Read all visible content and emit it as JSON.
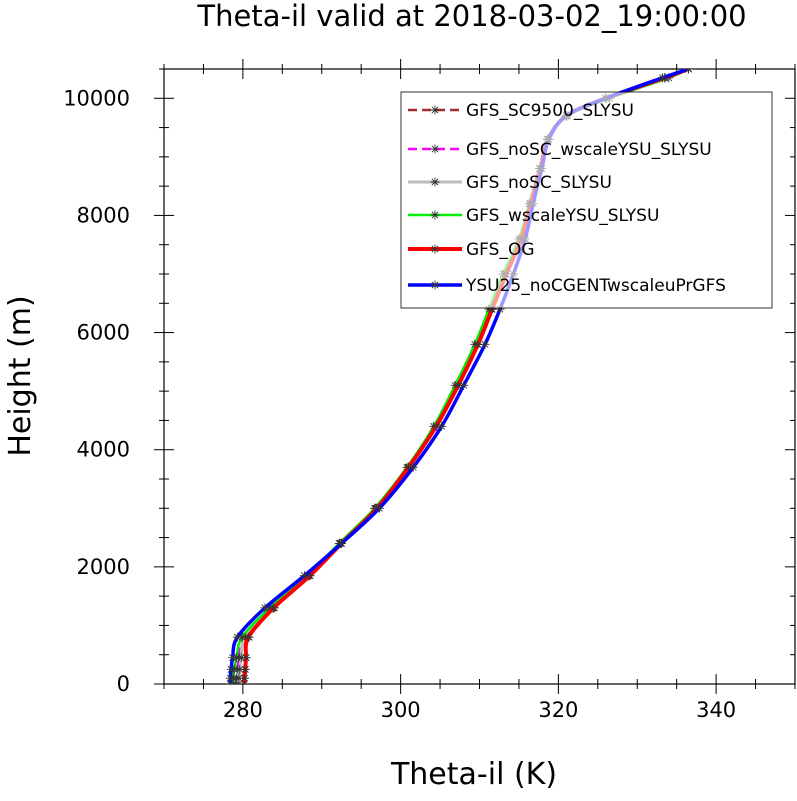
{
  "chart_data": {
    "type": "line",
    "title": "Theta-il valid at 2018-03-02_19:00:00",
    "xlabel": "Theta-il (K)",
    "ylabel": "Height (m)",
    "xlim": [
      270,
      350
    ],
    "ylim": [
      0,
      10500
    ],
    "x_ticks": [
      "280",
      "300",
      "320",
      "340"
    ],
    "y_ticks": [
      "0",
      "2000",
      "4000",
      "6000",
      "8000",
      "10000"
    ],
    "grid": false,
    "legend_position": "top-right",
    "series": [
      {
        "name": "GFS_SC9500_SLYSU",
        "color": "#a52a2a",
        "dashed": true,
        "x": [
          280.2,
          280.2,
          280.3,
          280.4,
          280.8,
          284.0,
          288.5,
          292.5,
          297.0,
          301.0,
          304.5,
          307.3,
          309.8,
          311.5,
          313.2,
          315.2,
          316.4,
          317.6,
          318.6,
          321.0,
          326.0,
          333.5,
          336.5
        ],
        "y": [
          0,
          100,
          250,
          450,
          800,
          1300,
          1850,
          2400,
          3000,
          3700,
          4400,
          5100,
          5800,
          6400,
          7000,
          7600,
          8200,
          8800,
          9300,
          9700,
          10000,
          10350,
          10500
        ]
      },
      {
        "name": "GFS_noSC_wscaleYSU_SLYSU",
        "color": "#ff00ff",
        "dashed": true,
        "x": [
          279.2,
          279.2,
          279.3,
          279.5,
          280.0,
          283.5,
          288.3,
          292.3,
          296.8,
          301.0,
          304.5,
          307.2,
          309.7,
          311.5,
          313.3,
          315.3,
          316.5,
          317.7,
          318.7,
          321.0,
          326.0,
          333.5,
          336.5
        ],
        "y": [
          0,
          100,
          250,
          450,
          800,
          1300,
          1850,
          2400,
          3000,
          3700,
          4400,
          5100,
          5800,
          6400,
          7000,
          7600,
          8200,
          8800,
          9300,
          9700,
          10000,
          10350,
          10500
        ]
      },
      {
        "name": "GFS_noSC_SLYSU",
        "color": "#bdbdbd",
        "dashed": false,
        "x": [
          279.5,
          279.5,
          279.6,
          279.8,
          280.3,
          283.8,
          288.4,
          292.4,
          296.9,
          301.0,
          304.5,
          307.2,
          309.7,
          311.5,
          313.3,
          315.3,
          316.5,
          317.7,
          318.7,
          321.0,
          326.0,
          333.5,
          336.5
        ],
        "y": [
          0,
          100,
          250,
          450,
          800,
          1300,
          1850,
          2400,
          3000,
          3700,
          4400,
          5100,
          5800,
          6400,
          7000,
          7600,
          8200,
          8800,
          9300,
          9700,
          10000,
          10350,
          10500
        ]
      },
      {
        "name": "GFS_wscaleYSU_SLYSU",
        "color": "#00ee00",
        "dashed": false,
        "x": [
          278.8,
          278.8,
          278.9,
          279.2,
          279.9,
          283.4,
          288.2,
          292.2,
          296.7,
          300.8,
          304.2,
          306.9,
          309.4,
          311.2,
          313.0,
          315.0,
          316.3,
          317.6,
          318.7,
          321.2,
          326.5,
          334.0,
          336.5
        ],
        "y": [
          0,
          100,
          250,
          450,
          800,
          1300,
          1850,
          2400,
          3000,
          3700,
          4400,
          5100,
          5800,
          6400,
          7000,
          7600,
          8200,
          8800,
          9300,
          9700,
          10000,
          10350,
          10500
        ]
      },
      {
        "name": "GFS_OG",
        "color": "#ff0000",
        "dashed": false,
        "x": [
          280.2,
          280.2,
          280.3,
          280.4,
          280.7,
          283.9,
          288.5,
          292.5,
          297.0,
          301.0,
          304.5,
          307.3,
          309.8,
          311.6,
          313.4,
          315.3,
          316.5,
          317.7,
          318.7,
          321.0,
          326.0,
          333.5,
          336.5
        ],
        "y": [
          0,
          100,
          250,
          450,
          800,
          1300,
          1850,
          2400,
          3000,
          3700,
          4400,
          5100,
          5800,
          6400,
          7000,
          7600,
          8200,
          8800,
          9300,
          9700,
          10000,
          10350,
          10500
        ]
      },
      {
        "name": "YSU25_noCGENTwscaleuPrGFS",
        "color": "#0000ff",
        "dashed": false,
        "x": [
          278.4,
          278.4,
          278.5,
          278.7,
          279.3,
          282.8,
          287.8,
          292.5,
          297.3,
          301.6,
          305.2,
          308.0,
          310.7,
          312.6,
          314.3,
          315.8,
          316.8,
          317.9,
          318.8,
          321.0,
          326.0,
          333.2,
          336.5
        ],
        "y": [
          0,
          100,
          250,
          450,
          800,
          1300,
          1850,
          2400,
          3000,
          3700,
          4400,
          5100,
          5800,
          6400,
          7000,
          7600,
          8200,
          8800,
          9300,
          9700,
          10000,
          10350,
          10500
        ]
      }
    ]
  }
}
